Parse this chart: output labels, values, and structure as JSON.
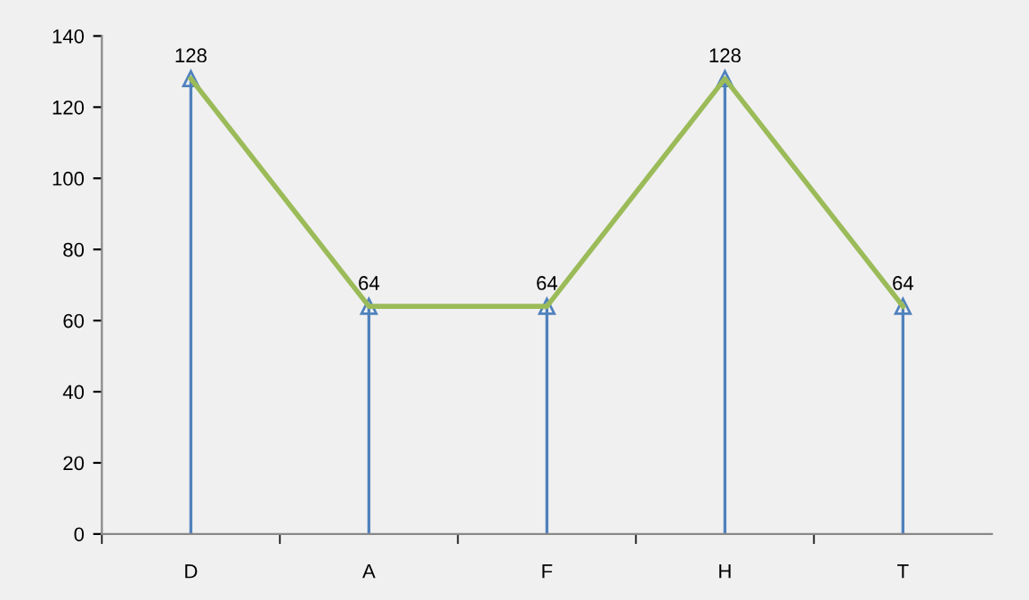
{
  "chart_data": {
    "type": "line",
    "categories": [
      "D",
      "A",
      "F",
      "H",
      "T"
    ],
    "series": [
      {
        "type": "lollipop",
        "color": "#4f81bd",
        "values": [
          128,
          64,
          64,
          128,
          64
        ],
        "marker": "triangle"
      },
      {
        "color": "#9bbb59",
        "values": [
          128,
          64,
          64,
          128,
          64
        ],
        "value_labels": [
          "128",
          "64",
          "64",
          "128",
          "64"
        ]
      }
    ],
    "ylim": [
      0,
      140
    ],
    "yticks": [
      0,
      20,
      40,
      60,
      80,
      100,
      120,
      140
    ],
    "marker": "none",
    "line_style": "solid"
  }
}
